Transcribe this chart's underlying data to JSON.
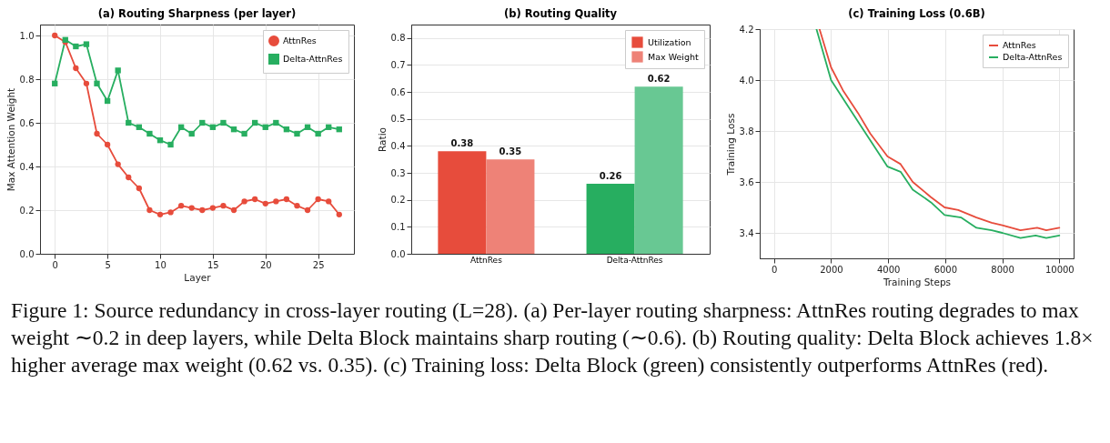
{
  "chart_data": [
    {
      "type": "line",
      "title": "(a) Routing Sharpness (per layer)",
      "xlabel": "Layer",
      "ylabel": "Max Attention Weight",
      "x": [
        0,
        1,
        2,
        3,
        4,
        5,
        6,
        7,
        8,
        9,
        10,
        11,
        12,
        13,
        14,
        15,
        16,
        17,
        18,
        19,
        20,
        21,
        22,
        23,
        24,
        25,
        26,
        27
      ],
      "series": [
        {
          "name": "AttnRes",
          "color": "#e74c3c",
          "marker": "circle",
          "values": [
            1.0,
            0.97,
            0.85,
            0.78,
            0.55,
            0.5,
            0.41,
            0.35,
            0.3,
            0.2,
            0.18,
            0.19,
            0.22,
            0.21,
            0.2,
            0.21,
            0.22,
            0.2,
            0.24,
            0.25,
            0.23,
            0.24,
            0.25,
            0.22,
            0.2,
            0.25,
            0.24,
            0.18
          ]
        },
        {
          "name": "Delta-AttnRes",
          "color": "#27ae60",
          "marker": "square",
          "values": [
            0.78,
            0.98,
            0.95,
            0.96,
            0.78,
            0.7,
            0.84,
            0.6,
            0.58,
            0.55,
            0.52,
            0.5,
            0.58,
            0.55,
            0.6,
            0.58,
            0.6,
            0.57,
            0.55,
            0.6,
            0.58,
            0.6,
            0.57,
            0.55,
            0.58,
            0.55,
            0.58,
            0.57
          ]
        }
      ],
      "xlim": [
        -1.4,
        28.4
      ],
      "ylim": [
        0,
        1.05
      ],
      "xticks": [
        0,
        5,
        10,
        15,
        20,
        25
      ],
      "yticks": [
        {
          "value": 0,
          "label": "0.0"
        },
        0.2,
        0.4,
        0.6,
        0.8,
        {
          "value": 1,
          "label": "1.0"
        }
      ],
      "grid": true,
      "legend": "top right",
      "annotations": [
        "Figure 1: Source redundancy in cross-layer routing (L=28). (a) Per-layer routing sharpness: AttnRes routing degrades to max weight ∼0.2 in deep layers, while Delta Block maintains sharp routing (∼0.6). (b) Routing quality: Delta Block achieves 1.8× higher average max weight (0.62 vs. 0.35). (c) Training loss: Delta Block (green) consistently outperforms AttnRes (red)."
      ]
    },
    {
      "type": "bar",
      "title": "(b) Routing Quality",
      "ylabel": "Ratio",
      "categories": [
        "AttnRes",
        "Delta-AttnRes"
      ],
      "series": [
        {
          "name": "Utilization",
          "colors": [
            "#e74c3c",
            "#27ae60"
          ],
          "values": [
            0.38,
            0.26
          ]
        },
        {
          "name": "Max Weight",
          "colors": [
            "#ee8277",
            "#68c893"
          ],
          "values": [
            0.35,
            0.62
          ]
        }
      ],
      "ylim": [
        0,
        0.85
      ],
      "yticks": [
        {
          "value": 0,
          "label": "0.0"
        },
        0.1,
        0.2,
        0.3,
        0.4,
        0.5,
        0.6,
        0.7,
        0.8
      ],
      "data_labels": true,
      "grid": "y",
      "legend": "top right"
    },
    {
      "type": "line",
      "title": "(c) Training Loss (0.6B)",
      "xlabel": "Training Steps",
      "ylabel": "Training Loss",
      "series": [
        {
          "name": "AttnRes",
          "color": "#e74c3c",
          "x": [
            1596,
            2000,
            2415,
            2947,
            3372,
            3979,
            4436,
            4862,
            5500,
            5979,
            6457,
            7096,
            7628,
            8000,
            8638,
            9223,
            9543,
            10000
          ],
          "values": [
            4.2,
            4.05,
            3.96,
            3.87,
            3.79,
            3.7,
            3.67,
            3.6,
            3.54,
            3.5,
            3.49,
            3.46,
            3.44,
            3.43,
            3.41,
            3.42,
            3.41,
            3.42
          ]
        },
        {
          "name": "Delta-AttnRes",
          "color": "#27ae60",
          "x": [
            1489,
            2000,
            2521,
            3160,
            3979,
            4436,
            4862,
            5500,
            5979,
            6564,
            7096,
            7628,
            8000,
            8638,
            9170,
            9543,
            10000
          ],
          "values": [
            4.2,
            4.0,
            3.91,
            3.8,
            3.66,
            3.64,
            3.57,
            3.52,
            3.47,
            3.46,
            3.42,
            3.41,
            3.4,
            3.38,
            3.39,
            3.38,
            3.39
          ]
        }
      ],
      "xlim": [
        -500,
        10500
      ],
      "ylim": [
        3.3,
        4.2
      ],
      "xticks": [
        0,
        2000,
        4000,
        6000,
        8000,
        10000
      ],
      "yticks": [
        3.4,
        3.6,
        3.8,
        {
          "value": 4,
          "label": "4.0"
        },
        4.2
      ],
      "grid": true,
      "legend": "top right"
    }
  ]
}
